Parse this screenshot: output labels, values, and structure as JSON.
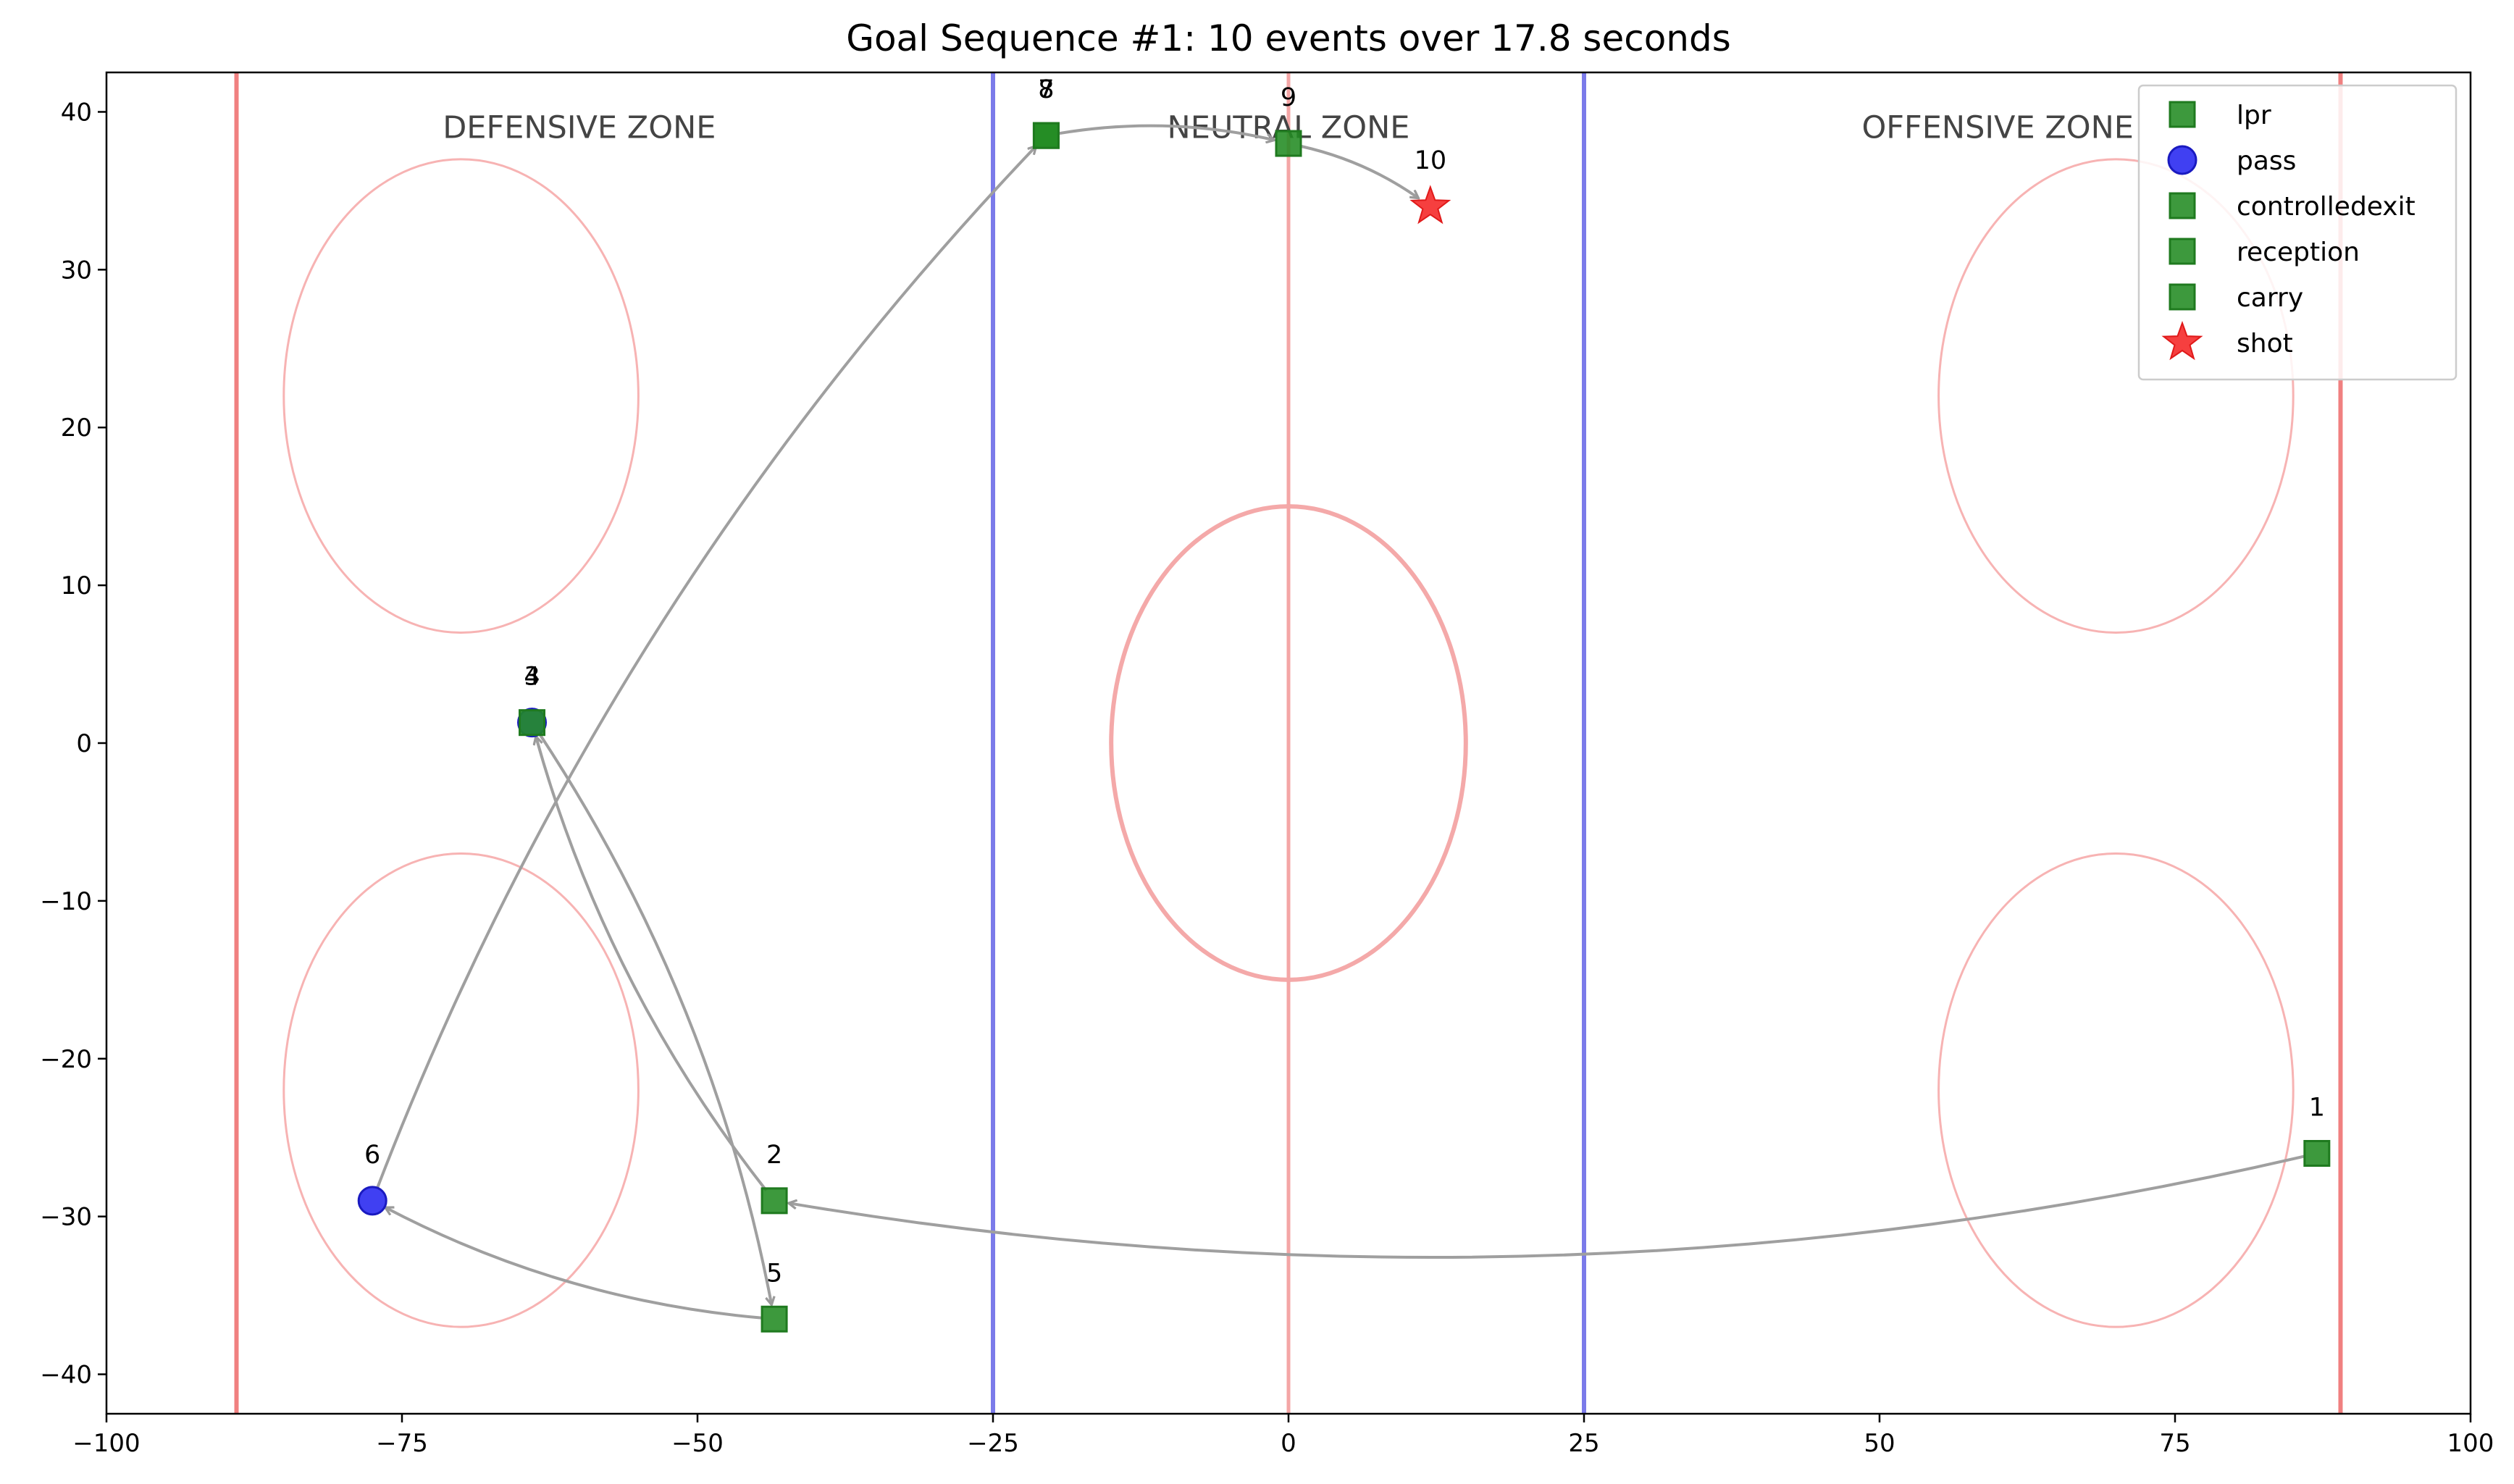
{
  "chart_data": {
    "type": "scatter",
    "title": "Goal Sequence #1: 10 events over 17.8 seconds",
    "xlabel": "",
    "ylabel": "",
    "xlim": [
      -100,
      100
    ],
    "ylim": [
      -42.5,
      42.5
    ],
    "x_ticks": [
      -100,
      -75,
      -50,
      -25,
      0,
      25,
      50,
      75,
      100
    ],
    "y_ticks": [
      -40,
      -30,
      -20,
      -10,
      0,
      10,
      20,
      30,
      40
    ],
    "x_tick_labels": [
      "−100",
      "−75",
      "−50",
      "−25",
      "0",
      "25",
      "50",
      "75",
      "100"
    ],
    "y_tick_labels": [
      "−40",
      "−30",
      "−20",
      "−10",
      "0",
      "10",
      "20",
      "30",
      "40"
    ],
    "grid": false,
    "legend_position": "top-right",
    "zones": [
      {
        "label": "DEFENSIVE ZONE",
        "x": -60,
        "y": 39
      },
      {
        "label": "NEUTRAL ZONE",
        "x": 0,
        "y": 39
      },
      {
        "label": "OFFENSIVE ZONE",
        "x": 60,
        "y": 39
      }
    ],
    "rink_lines": [
      {
        "kind": "goal-line",
        "x": -89,
        "color": "#f08080"
      },
      {
        "kind": "blue-line",
        "x": -25,
        "color": "#7b7bea"
      },
      {
        "kind": "center-line",
        "x": 0,
        "color": "#f4a6a6"
      },
      {
        "kind": "blue-line",
        "x": 25,
        "color": "#7b7bea"
      },
      {
        "kind": "goal-line",
        "x": 89,
        "color": "#f08080"
      }
    ],
    "faceoff_circles": [
      {
        "cx": -70,
        "cy": 22,
        "r": 15
      },
      {
        "cx": -70,
        "cy": -22,
        "r": 15
      },
      {
        "cx": 70,
        "cy": 22,
        "r": 15
      },
      {
        "cx": 70,
        "cy": -22,
        "r": 15
      }
    ],
    "center_circle": {
      "cx": 0,
      "cy": 0,
      "r": 15
    },
    "series": [
      {
        "name": "lpr",
        "marker": "square",
        "color": "#228b22"
      },
      {
        "name": "pass",
        "marker": "circle",
        "color": "#2525f0"
      },
      {
        "name": "controlledexit",
        "marker": "square",
        "color": "#228b22"
      },
      {
        "name": "reception",
        "marker": "square",
        "color": "#228b22"
      },
      {
        "name": "carry",
        "marker": "square",
        "color": "#228b22"
      },
      {
        "name": "shot",
        "marker": "star",
        "color": "#f52a2a"
      }
    ],
    "events": [
      {
        "label": "1",
        "type": "lpr",
        "x": 87,
        "y": -26
      },
      {
        "label": "2",
        "type": "reception",
        "x": -43.5,
        "y": -29
      },
      {
        "label": "3",
        "type": "pass",
        "x": -64,
        "y": 1.3
      },
      {
        "label": "4",
        "type": "reception",
        "x": -64,
        "y": 1.3
      },
      {
        "label": "5",
        "type": "carry",
        "x": -43.5,
        "y": -36.5
      },
      {
        "label": "6",
        "type": "pass",
        "x": -77.5,
        "y": -29
      },
      {
        "label": "7",
        "type": "reception",
        "x": -20.5,
        "y": 38.5
      },
      {
        "label": "8",
        "type": "controlledexit",
        "x": -20.5,
        "y": 38.5
      },
      {
        "label": "9",
        "type": "carry",
        "x": 0,
        "y": 38
      },
      {
        "label": "10",
        "type": "shot",
        "x": 12,
        "y": 34
      }
    ],
    "arrows": [
      {
        "from": 0,
        "to": 1,
        "rad": 0.1
      },
      {
        "from": 1,
        "to": 3,
        "rad": 0.1
      },
      {
        "from": 3,
        "to": 4,
        "rad": 0.1
      },
      {
        "from": 4,
        "to": 5,
        "rad": 0.1
      },
      {
        "from": 5,
        "to": 7,
        "rad": 0.1
      },
      {
        "from": 7,
        "to": 8,
        "rad": 0.1
      },
      {
        "from": 8,
        "to": 9,
        "rad": 0.1
      }
    ]
  }
}
